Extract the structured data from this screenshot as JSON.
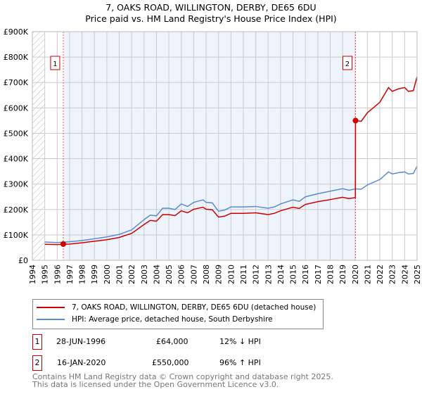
{
  "chart_data": {
    "type": "line",
    "title": "7, OAKS ROAD, WILLINGTON, DERBY, DE65 6DU",
    "subtitle": "Price paid vs. HM Land Registry's House Price Index (HPI)",
    "xlim": [
      1994,
      2025
    ],
    "ylim": [
      0,
      900000
    ],
    "y_ticks": [
      {
        "v": 0,
        "label": "£0"
      },
      {
        "v": 100000,
        "label": "£100K"
      },
      {
        "v": 200000,
        "label": "£200K"
      },
      {
        "v": 300000,
        "label": "£300K"
      },
      {
        "v": 400000,
        "label": "£400K"
      },
      {
        "v": 500000,
        "label": "£500K"
      },
      {
        "v": 600000,
        "label": "£600K"
      },
      {
        "v": 700000,
        "label": "£700K"
      },
      {
        "v": 800000,
        "label": "£800K"
      },
      {
        "v": 900000,
        "label": "£900K"
      }
    ],
    "x_ticks": [
      "1994",
      "1995",
      "1996",
      "1997",
      "1998",
      "1999",
      "2000",
      "2001",
      "2002",
      "2003",
      "2004",
      "2005",
      "2006",
      "2007",
      "2008",
      "2009",
      "2010",
      "2011",
      "2012",
      "2013",
      "2014",
      "2015",
      "2016",
      "2017",
      "2018",
      "2019",
      "2020",
      "2021",
      "2022",
      "2023",
      "2024",
      "2025"
    ],
    "grid": true,
    "series": [
      {
        "name": "7, OAKS ROAD, WILLINGTON, DERBY, DE65 6DU (detached house)",
        "color": "#cc0000",
        "x": [
          1995,
          1996,
          1997,
          1998,
          1999,
          2000,
          2001,
          2002,
          2003,
          2003.5,
          2004,
          2004.5,
          2005,
          2005.5,
          2006,
          2006.5,
          2007,
          2007.75,
          2008,
          2008.5,
          2009,
          2009.5,
          2010,
          2011,
          2012,
          2013,
          2013.5,
          2014,
          2015,
          2015.5,
          2016,
          2017,
          2018,
          2019,
          2019.5,
          2020.03,
          2020.04,
          2020.5,
          2021,
          2022,
          2022.7,
          2023,
          2023.5,
          2024,
          2024.3,
          2024.7,
          2025
        ],
        "y": [
          63000,
          62000,
          64000,
          69000,
          75000,
          81000,
          90000,
          106000,
          141000,
          157000,
          154000,
          180000,
          180000,
          176000,
          195000,
          187000,
          201000,
          209000,
          201000,
          199000,
          170000,
          174000,
          185000,
          185000,
          187000,
          180000,
          185000,
          195000,
          209000,
          204000,
          220000,
          231000,
          239000,
          248000,
          243000,
          247000,
          550000,
          547000,
          581000,
          622000,
          680000,
          665000,
          675000,
          680000,
          665000,
          668000,
          723000
        ]
      },
      {
        "name": "HPI: Average price, detached house, South Derbyshire",
        "color": "#5b8bd0",
        "x": [
          1995,
          1996,
          1997,
          1998,
          1999,
          2000,
          2001,
          2002,
          2003,
          2003.5,
          2004,
          2004.5,
          2005,
          2005.5,
          2006,
          2006.5,
          2007,
          2007.75,
          2008,
          2008.5,
          2009,
          2009.5,
          2010,
          2011,
          2012,
          2013,
          2013.5,
          2014,
          2015,
          2015.5,
          2016,
          2017,
          2018,
          2019,
          2019.5,
          2020.04,
          2020.5,
          2021,
          2022,
          2022.7,
          2023,
          2023.5,
          2024,
          2024.3,
          2024.7,
          2025
        ],
        "y": [
          72000,
          70000,
          73000,
          78000,
          85000,
          92000,
          102000,
          120000,
          160000,
          178000,
          175000,
          205000,
          205000,
          200000,
          222000,
          212000,
          228000,
          238000,
          228000,
          226000,
          193000,
          198000,
          210000,
          210000,
          212000,
          205000,
          210000,
          222000,
          238000,
          232000,
          250000,
          262000,
          272000,
          282000,
          276000,
          281000,
          280000,
          297000,
          318000,
          348000,
          340000,
          345000,
          348000,
          340000,
          342000,
          370000
        ]
      }
    ],
    "annotations": [
      {
        "label": "1",
        "x": 1996.49,
        "y": 64000
      },
      {
        "label": "2",
        "x": 2020.04,
        "y": 550000
      }
    ],
    "legend_placement": "below"
  },
  "transactions": [
    {
      "num": "1",
      "date": "28-JUN-1996",
      "price": "£64,000",
      "hpi": "12% ↓ HPI"
    },
    {
      "num": "2",
      "date": "16-JAN-2020",
      "price": "£550,000",
      "hpi": "96% ↑ HPI"
    }
  ],
  "footer": {
    "line1": "Contains HM Land Registry data © Crown copyright and database right 2025.",
    "line2": "This data is licensed under the Open Government Licence v3.0."
  }
}
